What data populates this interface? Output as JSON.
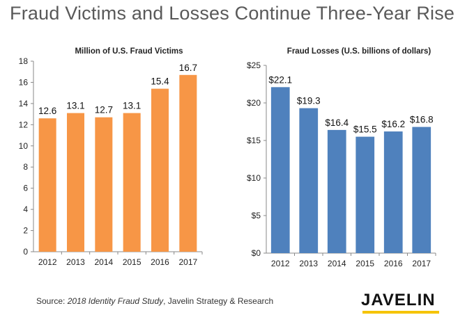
{
  "page": {
    "title": "Fraud Victims and Losses Continue Three-Year Rise",
    "source_prefix": "Source: ",
    "source_title": "2018 Identity Fraud Study",
    "source_suffix": ", Javelin Strategy & Research",
    "logo": "JAVELIN"
  },
  "chart_data": [
    {
      "type": "bar",
      "title": "Million of U.S. Fraud Victims",
      "categories": [
        "2012",
        "2013",
        "2014",
        "2015",
        "2016",
        "2017"
      ],
      "values": [
        12.6,
        13.1,
        12.7,
        13.1,
        15.4,
        16.7
      ],
      "value_labels": [
        "12.6",
        "13.1",
        "12.7",
        "13.1",
        "15.4",
        "16.7"
      ],
      "ylim": [
        0,
        18
      ],
      "yticks": [
        0,
        2,
        4,
        6,
        8,
        10,
        12,
        14,
        16,
        18
      ],
      "ytick_labels": [
        "0",
        "2",
        "4",
        "6",
        "8",
        "10",
        "12",
        "14",
        "16",
        "18"
      ],
      "color": "#F79646",
      "grid": false
    },
    {
      "type": "bar",
      "title": "Fraud Losses (U.S. billions of dollars)",
      "categories": [
        "2012",
        "2013",
        "2014",
        "2015",
        "2016",
        "2017"
      ],
      "values": [
        22.1,
        19.3,
        16.4,
        15.5,
        16.2,
        16.8
      ],
      "value_labels": [
        "$22.1",
        "$19.3",
        "$16.4",
        "$15.5",
        "$16.2",
        "$16.8"
      ],
      "ylim": [
        0,
        25
      ],
      "yticks": [
        0,
        5,
        10,
        15,
        20,
        25
      ],
      "ytick_labels": [
        "$0",
        "$5",
        "$10",
        "$15",
        "$20",
        "$25"
      ],
      "color": "#4F81BD",
      "grid": false
    }
  ]
}
